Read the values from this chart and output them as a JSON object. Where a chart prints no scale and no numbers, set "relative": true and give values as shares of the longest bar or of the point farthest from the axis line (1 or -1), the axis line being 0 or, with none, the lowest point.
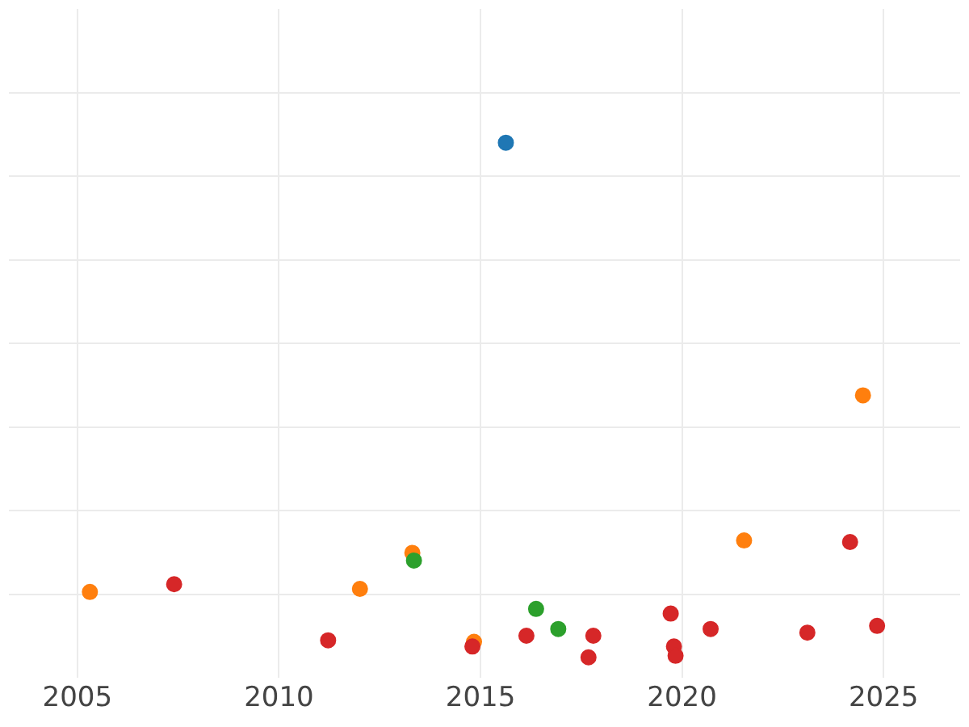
{
  "chart_data": {
    "type": "scatter",
    "relative": true,
    "grid": true,
    "legend": false,
    "marker": "circle",
    "xlim": [
      2003.3,
      2026.9
    ],
    "xticks": [
      2005,
      2010,
      2015,
      2020,
      2025
    ],
    "series": [
      {
        "color": "#1f77b4",
        "x": [
          2015.63
        ],
        "values": [
          1
        ]
      },
      {
        "color": "#ff7f0e",
        "x": [
          2005.31,
          2012.01,
          2013.31,
          2014.84,
          2021.54,
          2024.49
        ],
        "values": [
          0.127,
          0.133,
          0.203,
          0.03,
          0.227,
          0.509
        ]
      },
      {
        "color": "#2ca02c",
        "x": [
          2013.35,
          2016.38,
          2016.93
        ],
        "values": [
          0.188,
          0.094,
          0.055
        ]
      },
      {
        "color": "#d62728",
        "x": [
          2007.4,
          2011.22,
          2014.8,
          2016.14,
          2017.8,
          2017.68,
          2019.72,
          2019.8,
          2019.84,
          2020.71,
          2023.11,
          2024.17,
          2024.84
        ],
        "values": [
          0.142,
          0.033,
          0.021,
          0.042,
          0.042,
          0,
          0.085,
          0.021,
          0.003,
          0.055,
          0.048,
          0.224,
          0.061
        ]
      }
    ]
  }
}
